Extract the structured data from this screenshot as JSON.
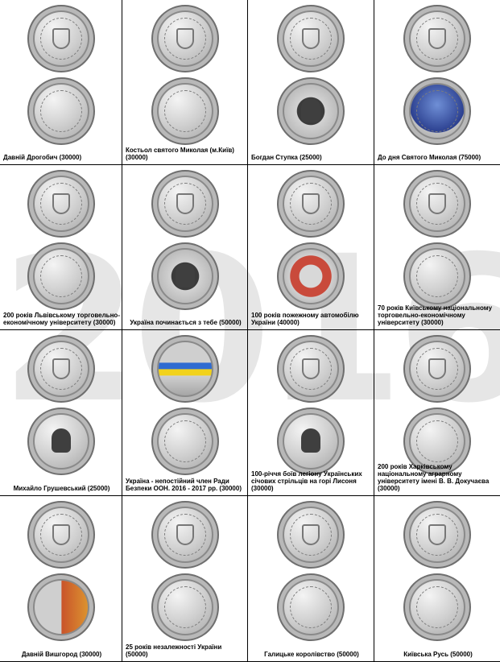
{
  "watermark": "2016",
  "coins": [
    {
      "caption": "Давній Дрогобич (30000)",
      "obverse": "plain",
      "reverse": "plain",
      "align": "center"
    },
    {
      "caption": "Костьол святого Миколая (м.Київ) (30000)",
      "obverse": "plain",
      "reverse": "plain",
      "align": "left"
    },
    {
      "caption": "Богдан Ступка (25000)",
      "obverse": "plain",
      "reverse": "dark",
      "align": "center"
    },
    {
      "caption": "До дня Святого Миколая (75000)",
      "obverse": "plain",
      "reverse": "blue",
      "align": "center"
    },
    {
      "caption": "200 років Львівському торговельно-економічному університету (30000)",
      "obverse": "plain",
      "reverse": "plain",
      "align": "left"
    },
    {
      "caption": "Україна починається з тебе (50000)",
      "obverse": "plain",
      "reverse": "dark",
      "align": "center"
    },
    {
      "caption": "100 років пожежному автомобілю України (40000)",
      "obverse": "plain",
      "reverse": "red",
      "align": "left"
    },
    {
      "caption": "70 років Київському національному торговельно-економічному університету (30000)",
      "obverse": "plain",
      "reverse": "plain",
      "align": "left"
    },
    {
      "caption": "Михайло Грушевський (25000)",
      "obverse": "plain",
      "reverse": "plain",
      "align": "center"
    },
    {
      "caption": "Україна - непостійний член Ради Безпеки ООН. 2016 - 2017 рр. (30000)",
      "obverse": "yb",
      "reverse": "plain",
      "align": "left"
    },
    {
      "caption": "100-річчя боїв легіону Українських січових стрільців на горі Лисоня (30000)",
      "obverse": "plain",
      "reverse": "plain",
      "align": "left"
    },
    {
      "caption": "200 років Харківському національному аграрному університету імені В. В. Докучаєва (30000)",
      "obverse": "plain",
      "reverse": "plain",
      "align": "left"
    },
    {
      "caption": "Давній Вишгород (30000)",
      "obverse": "plain",
      "reverse": "orange",
      "align": "center"
    },
    {
      "caption": "25 років незалежності України (50000)",
      "obverse": "plain",
      "reverse": "plain",
      "align": "left"
    },
    {
      "caption": "Галицьке королівство (50000)",
      "obverse": "plain",
      "reverse": "plain",
      "align": "center"
    },
    {
      "caption": "Київська Русь (50000)",
      "obverse": "plain",
      "reverse": "plain",
      "align": "center"
    }
  ]
}
